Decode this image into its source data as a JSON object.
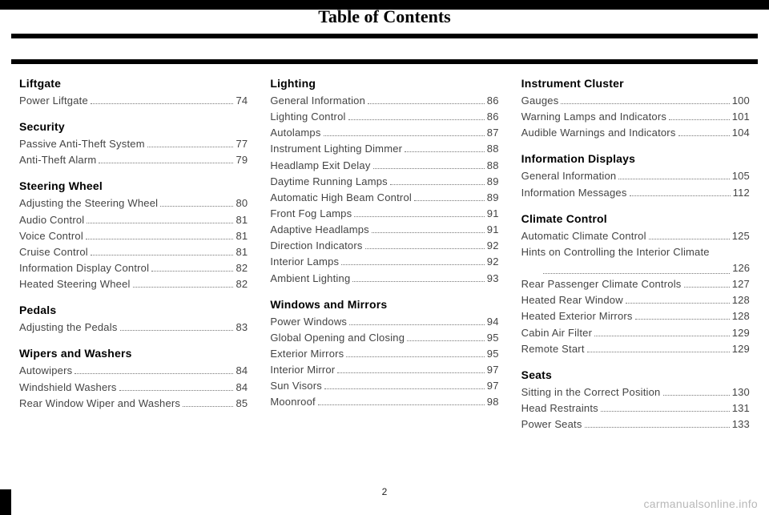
{
  "title": "Table of Contents",
  "page_number": "2",
  "watermark": "carmanualsonline.info",
  "colors": {
    "background": "#ffffff",
    "bar": "#000000",
    "title": "#000000",
    "entry_text": "#444444",
    "dots": "#777777",
    "watermark": "#b8b8b8"
  },
  "typography": {
    "title_family": "Georgia",
    "title_size_pt": 16,
    "section_size_pt": 11,
    "entry_size_pt": 10
  },
  "sections": [
    {
      "title": "Liftgate",
      "entries": [
        {
          "label": "Power Liftgate",
          "page": "74"
        }
      ]
    },
    {
      "title": "Security",
      "entries": [
        {
          "label": "Passive Anti-Theft System",
          "page": "77"
        },
        {
          "label": "Anti-Theft Alarm",
          "page": "79"
        }
      ]
    },
    {
      "title": "Steering Wheel",
      "entries": [
        {
          "label": "Adjusting the Steering Wheel",
          "page": "80"
        },
        {
          "label": "Audio Control",
          "page": "81"
        },
        {
          "label": "Voice Control",
          "page": "81"
        },
        {
          "label": "Cruise Control",
          "page": "81"
        },
        {
          "label": "Information Display Control",
          "page": "82"
        },
        {
          "label": "Heated Steering Wheel",
          "page": "82"
        }
      ]
    },
    {
      "title": "Pedals",
      "entries": [
        {
          "label": "Adjusting the Pedals",
          "page": "83"
        }
      ]
    },
    {
      "title": "Wipers and Washers",
      "entries": [
        {
          "label": "Autowipers",
          "page": "84"
        },
        {
          "label": "Windshield Washers",
          "page": "84"
        },
        {
          "label": "Rear Window Wiper and Washers",
          "page": "85"
        }
      ]
    },
    {
      "title": "Lighting",
      "entries": [
        {
          "label": "General Information",
          "page": "86"
        },
        {
          "label": "Lighting Control",
          "page": "86"
        },
        {
          "label": "Autolamps",
          "page": "87"
        },
        {
          "label": "Instrument Lighting Dimmer",
          "page": "88"
        },
        {
          "label": "Headlamp Exit Delay",
          "page": "88"
        },
        {
          "label": "Daytime Running Lamps",
          "page": "89"
        },
        {
          "label": "Automatic High Beam Control",
          "page": "89"
        },
        {
          "label": "Front Fog Lamps",
          "page": "91"
        },
        {
          "label": "Adaptive Headlamps",
          "page": "91"
        },
        {
          "label": "Direction Indicators",
          "page": "92"
        },
        {
          "label": "Interior Lamps",
          "page": "92"
        },
        {
          "label": "Ambient Lighting",
          "page": "93"
        }
      ]
    },
    {
      "title": "Windows and Mirrors",
      "entries": [
        {
          "label": "Power Windows",
          "page": "94"
        },
        {
          "label": "Global Opening and Closing",
          "page": "95"
        },
        {
          "label": "Exterior Mirrors",
          "page": "95"
        },
        {
          "label": "Interior Mirror",
          "page": "97"
        },
        {
          "label": "Sun Visors",
          "page": "97"
        },
        {
          "label": "Moonroof",
          "page": "98"
        }
      ]
    },
    {
      "title": "Instrument Cluster",
      "entries": [
        {
          "label": "Gauges",
          "page": "100"
        },
        {
          "label": "Warning Lamps and Indicators",
          "page": "101"
        },
        {
          "label": "Audible Warnings and Indicators",
          "page": "104"
        }
      ]
    },
    {
      "title": "Information Displays",
      "entries": [
        {
          "label": "General Information",
          "page": "105"
        },
        {
          "label": "Information Messages",
          "page": "112"
        }
      ]
    },
    {
      "title": "Climate Control",
      "entries": [
        {
          "label": "Automatic Climate Control",
          "page": "125"
        },
        {
          "label": "Hints on Controlling the Interior Climate",
          "page": "126",
          "wrap": true
        },
        {
          "label": "Rear Passenger Climate Controls",
          "page": "127"
        },
        {
          "label": "Heated Rear Window",
          "page": "128"
        },
        {
          "label": "Heated Exterior Mirrors",
          "page": "128"
        },
        {
          "label": "Cabin Air Filter",
          "page": "129"
        },
        {
          "label": "Remote Start",
          "page": "129"
        }
      ]
    },
    {
      "title": "Seats",
      "entries": [
        {
          "label": "Sitting in the Correct Position",
          "page": "130"
        },
        {
          "label": "Head Restraints",
          "page": "131"
        },
        {
          "label": "Power Seats",
          "page": "133"
        }
      ]
    }
  ]
}
